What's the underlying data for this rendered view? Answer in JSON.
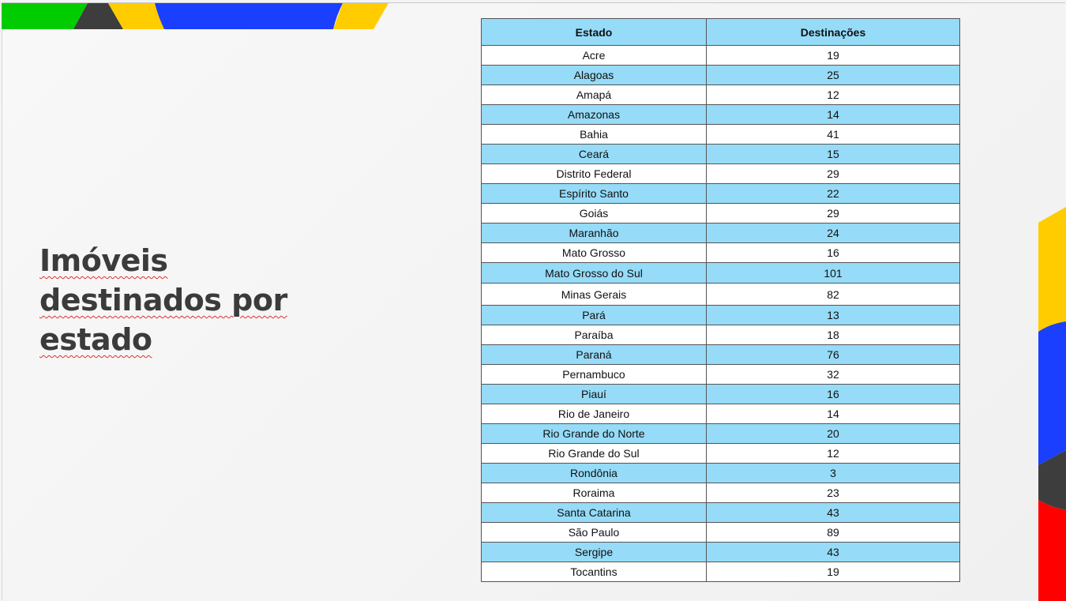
{
  "slide": {
    "title_lines": [
      "Imóveis",
      "destinados por",
      "estado"
    ],
    "colors": {
      "green": "#00cc00",
      "dark": "#3d3d3d",
      "yellow": "#ffcc00",
      "blue": "#1a3fff",
      "red": "#ff0000",
      "table_header": "#96dbf7"
    }
  },
  "table": {
    "headers": [
      "Estado",
      "Destinações"
    ],
    "rows": [
      [
        "Acre",
        "19"
      ],
      [
        "Alagoas",
        "25"
      ],
      [
        "Amapá",
        "12"
      ],
      [
        "Amazonas",
        "14"
      ],
      [
        "Bahia",
        "41"
      ],
      [
        "Ceará",
        "15"
      ],
      [
        "Distrito Federal",
        "29"
      ],
      [
        "Espírito Santo",
        "22"
      ],
      [
        "Goiás",
        "29"
      ],
      [
        "Maranhão",
        "24"
      ],
      [
        "Mato Grosso",
        "16"
      ],
      [
        "Mato Grosso do Sul",
        "101"
      ],
      [
        "Minas Gerais",
        "82"
      ],
      [
        "Pará",
        "13"
      ],
      [
        "Paraíba",
        "18"
      ],
      [
        "Paraná",
        "76"
      ],
      [
        "Pernambuco",
        "32"
      ],
      [
        "Piauí",
        "16"
      ],
      [
        "Rio de Janeiro",
        "14"
      ],
      [
        "Rio Grande do Norte",
        "20"
      ],
      [
        "Rio Grande do Sul",
        "12"
      ],
      [
        "Rondônia",
        "3"
      ],
      [
        "Roraima",
        "23"
      ],
      [
        "Santa Catarina",
        "43"
      ],
      [
        "São Paulo",
        "89"
      ],
      [
        "Sergipe",
        "43"
      ],
      [
        "Tocantins",
        "19"
      ]
    ]
  }
}
